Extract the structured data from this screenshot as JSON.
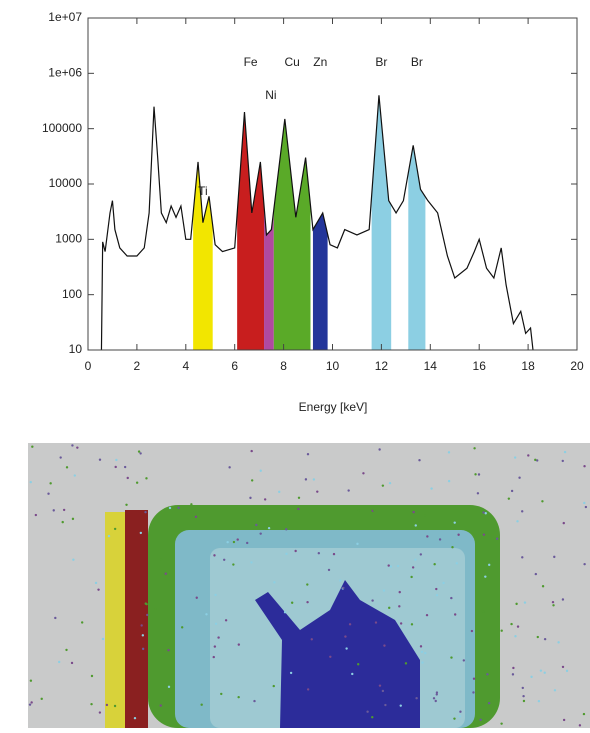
{
  "chart_data": {
    "type": "line",
    "xlabel": "Energy [keV]",
    "xlim": [
      0,
      20
    ],
    "xticks": [
      0,
      2,
      4,
      6,
      8,
      10,
      12,
      14,
      16,
      18,
      20
    ],
    "ylim": [
      10,
      10000000
    ],
    "ylog": true,
    "yticks": [
      10,
      100,
      1000,
      10000,
      100000,
      {
        "value": 1000000,
        "label": "1e+06"
      },
      {
        "value": 10000000,
        "label": "1e+07"
      }
    ],
    "color": "#111111",
    "x": [
      0.55,
      0.6,
      0.7,
      0.9,
      1.0,
      1.1,
      1.3,
      1.6,
      2.0,
      2.3,
      2.5,
      2.7,
      2.85,
      3.0,
      3.2,
      3.4,
      3.6,
      3.8,
      4.0,
      4.2,
      4.5,
      4.7,
      4.95,
      5.2,
      5.5,
      6.0,
      6.4,
      6.7,
      7.05,
      7.3,
      7.5,
      8.05,
      8.5,
      8.9,
      9.2,
      9.6,
      9.9,
      10.2,
      10.5,
      11.0,
      11.5,
      11.9,
      12.3,
      12.6,
      12.9,
      13.3,
      13.6,
      13.9,
      14.3,
      14.7,
      15.0,
      15.5,
      15.8,
      16.0,
      16.3,
      16.6,
      16.9,
      17.1,
      17.4,
      17.7,
      17.9,
      18.1,
      18.2
    ],
    "values": [
      10,
      900,
      600,
      3000,
      5000,
      1500,
      700,
      500,
      500,
      700,
      3000,
      250000,
      30000,
      3000,
      2000,
      4000,
      2500,
      4000,
      1000,
      1000,
      25000,
      2000,
      6000,
      800,
      600,
      700,
      200000,
      3000,
      25000,
      1200,
      1500,
      150000,
      2500,
      30000,
      1500,
      3000,
      800,
      700,
      1500,
      1200,
      1500,
      400000,
      5000,
      3000,
      5000,
      50000,
      8000,
      5000,
      3000,
      500,
      200,
      300,
      600,
      1000,
      300,
      200,
      700,
      150,
      30,
      50,
      20,
      25,
      10
    ],
    "regions": [
      {
        "name": "Ti",
        "color": "#f2e600",
        "range": [
          4.3,
          5.1
        ]
      },
      {
        "name": "Fe",
        "color": "#c81e1e",
        "range": [
          6.1,
          7.2
        ]
      },
      {
        "name": "Ni",
        "color": "#b04aa0",
        "range": [
          7.2,
          7.6
        ]
      },
      {
        "name": "Cu",
        "color": "#5aaa28",
        "range": [
          7.6,
          9.1
        ]
      },
      {
        "name": "Zn",
        "color": "#23359a",
        "range": [
          9.2,
          9.8
        ]
      },
      {
        "name": "Br",
        "color": "#8ccfe3",
        "range": [
          11.6,
          12.4
        ]
      },
      {
        "name": "Br",
        "color": "#8ccfe3",
        "range": [
          13.1,
          13.8
        ]
      }
    ]
  }
}
